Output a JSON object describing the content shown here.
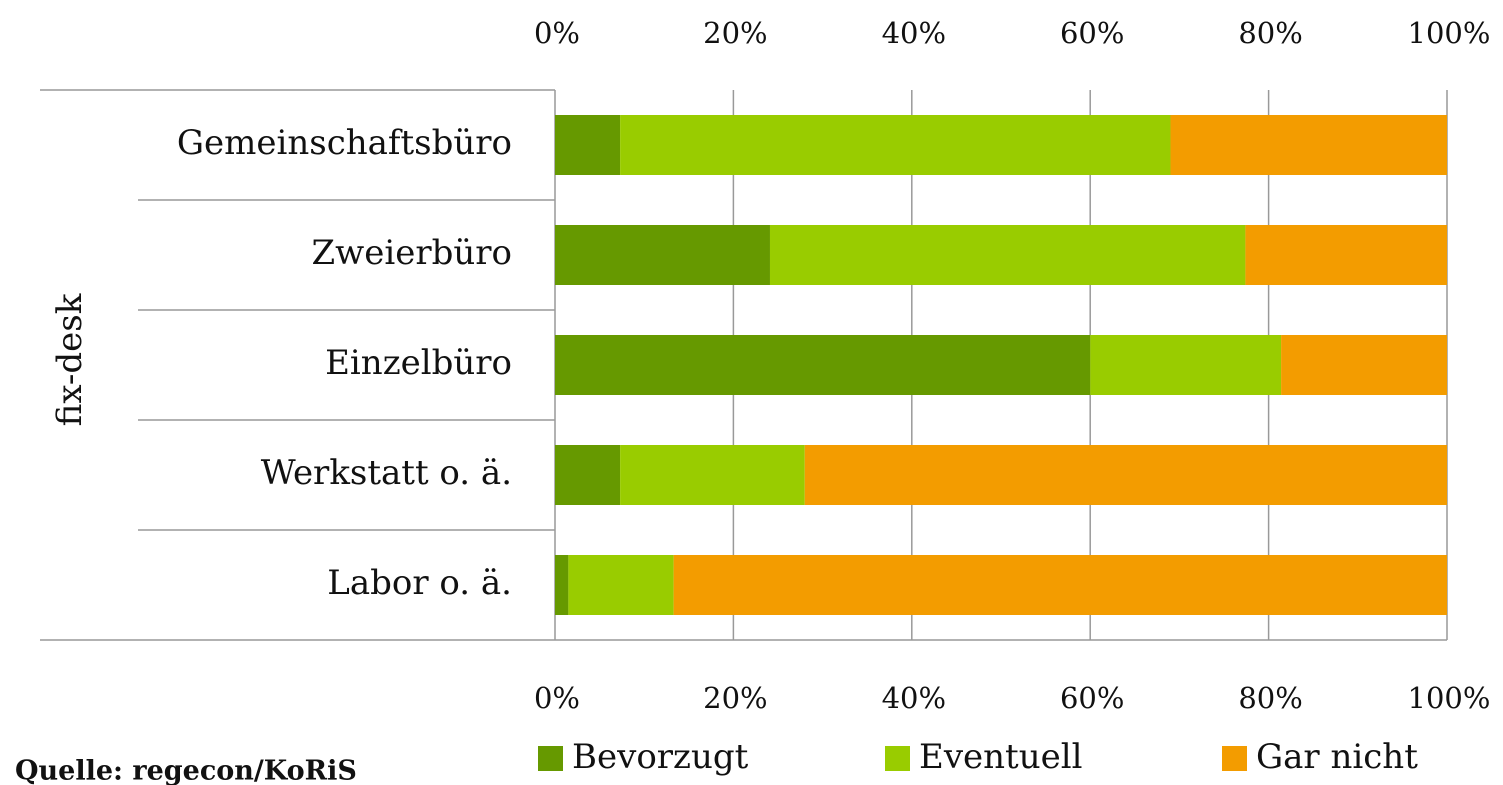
{
  "chart_data": {
    "type": "stacked_barh",
    "group_label": "fix-desk",
    "source": "Quelle: regecon/KoRiS",
    "categories": [
      "Gemeinschaftsbüro",
      "Zweierbüro",
      "Einzelbüro",
      "Werkstatt o. ä.",
      "Labor o. ä."
    ],
    "series": [
      {
        "name": "Bevorzugt",
        "color": "#669900",
        "values": [
          7.3,
          24.1,
          60.0,
          7.3,
          1.5
        ]
      },
      {
        "name": "Eventuell",
        "color": "#99cc00",
        "values": [
          61.7,
          53.3,
          21.4,
          20.7,
          11.8
        ]
      },
      {
        "name": "Gar nicht",
        "color": "#f39c00",
        "values": [
          31.0,
          22.6,
          18.6,
          72.0,
          86.7
        ]
      }
    ],
    "xlim": [
      0,
      100
    ],
    "xticks": [
      {
        "value": 0,
        "label": "0%"
      },
      {
        "value": 20,
        "label": "20%"
      },
      {
        "value": 40,
        "label": "40%"
      },
      {
        "value": 60,
        "label": "60%"
      },
      {
        "value": 80,
        "label": "80%"
      },
      {
        "value": 100,
        "label": "100%"
      }
    ],
    "grid": true
  }
}
